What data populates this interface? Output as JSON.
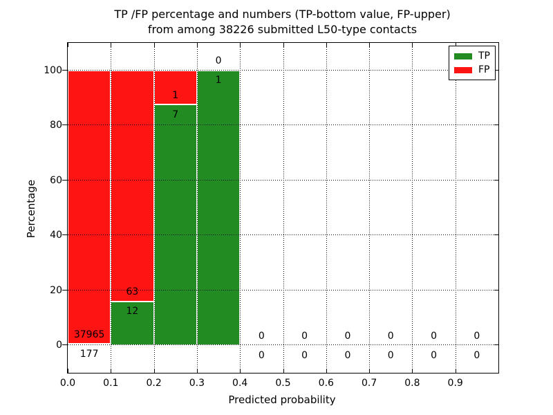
{
  "title": {
    "line1": "TP /FP percentage and numbers (TP-bottom value, FP-upper)",
    "line2": "from among 38226 submitted L50-type contacts"
  },
  "colors": {
    "tp": "#228b22",
    "fp": "#ff1414",
    "text": "#000000",
    "background": "#ffffff",
    "grid": "#000000"
  },
  "chart_data": {
    "type": "bar",
    "stacked": true,
    "title": "TP /FP percentage and numbers (TP-bottom value, FP-upper) from among 38226 submitted L50-type contacts",
    "xlabel": "Predicted probability",
    "ylabel": "Percentage",
    "xlim": [
      0.0,
      1.0
    ],
    "ylim": [
      -10,
      110
    ],
    "grid": "dotted",
    "total_contacts": 38226,
    "xticks": [
      0.0,
      0.1,
      0.2,
      0.3,
      0.4,
      0.5,
      0.6,
      0.7,
      0.8,
      0.9
    ],
    "xtick_labels": [
      "0.0",
      "0.1",
      "0.2",
      "0.3",
      "0.4",
      "0.5",
      "0.6",
      "0.7",
      "0.8",
      "0.9"
    ],
    "yticks": [
      0,
      20,
      40,
      60,
      80,
      100
    ],
    "legend": {
      "position": "upper right",
      "entries": [
        {
          "label": "TP",
          "color_key": "tp"
        },
        {
          "label": "FP",
          "color_key": "fp"
        }
      ]
    },
    "bins": [
      {
        "x0": 0.0,
        "x1": 0.1,
        "tp": 177,
        "fp": 37965
      },
      {
        "x0": 0.1,
        "x1": 0.2,
        "tp": 12,
        "fp": 63
      },
      {
        "x0": 0.2,
        "x1": 0.3,
        "tp": 7,
        "fp": 1
      },
      {
        "x0": 0.3,
        "x1": 0.4,
        "tp": 1,
        "fp": 0
      },
      {
        "x0": 0.4,
        "x1": 0.5,
        "tp": 0,
        "fp": 0
      },
      {
        "x0": 0.5,
        "x1": 0.6,
        "tp": 0,
        "fp": 0
      },
      {
        "x0": 0.6,
        "x1": 0.7,
        "tp": 0,
        "fp": 0
      },
      {
        "x0": 0.7,
        "x1": 0.8,
        "tp": 0,
        "fp": 0
      },
      {
        "x0": 0.8,
        "x1": 0.9,
        "tp": 0,
        "fp": 0
      },
      {
        "x0": 0.9,
        "x1": 1.0,
        "tp": 0,
        "fp": 0
      }
    ]
  }
}
